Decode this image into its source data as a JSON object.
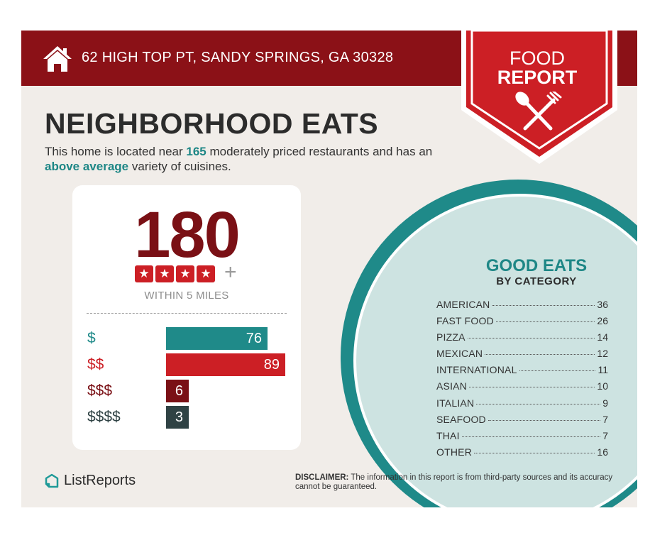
{
  "header": {
    "address": "62 HIGH TOP PT, SANDY SPRINGS, GA 30328",
    "badge_line1": "FOOD",
    "badge_line2": "REPORT",
    "home_icon": "home-icon",
    "badge_icon": "spoon-fork-icon",
    "colors": {
      "bar": "#8b1117",
      "badge": "#cc1f25"
    }
  },
  "main": {
    "headline": "NEIGHBORHOOD EATS",
    "intro_part1": "This home is located near ",
    "intro_count": "165",
    "intro_part2": " moderately priced restaurants and has an ",
    "intro_variety": "above average",
    "intro_part3": " variety of cuisines."
  },
  "stats": {
    "total": "180",
    "star_rating": 4,
    "star_suffix": "+",
    "radius_label": "WITHIN 5 MILES",
    "price_levels": [
      {
        "label": "$",
        "count": 76,
        "color": "#1f8a89"
      },
      {
        "label": "$$",
        "count": 89,
        "color": "#cc1f25"
      },
      {
        "label": "$$$",
        "count": 6,
        "color": "#7a1015"
      },
      {
        "label": "$$$$",
        "count": 3,
        "color": "#2f4244"
      }
    ]
  },
  "categories": {
    "title": "GOOD EATS",
    "subtitle": "BY CATEGORY",
    "items": [
      {
        "name": "AMERICAN",
        "count": "36"
      },
      {
        "name": "FAST FOOD",
        "count": "26"
      },
      {
        "name": "PIZZA",
        "count": "14"
      },
      {
        "name": "MEXICAN",
        "count": "12"
      },
      {
        "name": "INTERNATIONAL",
        "count": "11"
      },
      {
        "name": "ASIAN",
        "count": "10"
      },
      {
        "name": "ITALIAN",
        "count": "9"
      },
      {
        "name": "SEAFOOD",
        "count": "7"
      },
      {
        "name": "THAI",
        "count": "7"
      },
      {
        "name": "OTHER",
        "count": "16"
      }
    ]
  },
  "footer": {
    "brand": "ListReports",
    "brand_icon": "listreports-logo-icon",
    "disclaimer_label": "DISCLAIMER:",
    "disclaimer_text": " The information in this report is from third-party sources and its accuracy cannot be guaranteed."
  }
}
